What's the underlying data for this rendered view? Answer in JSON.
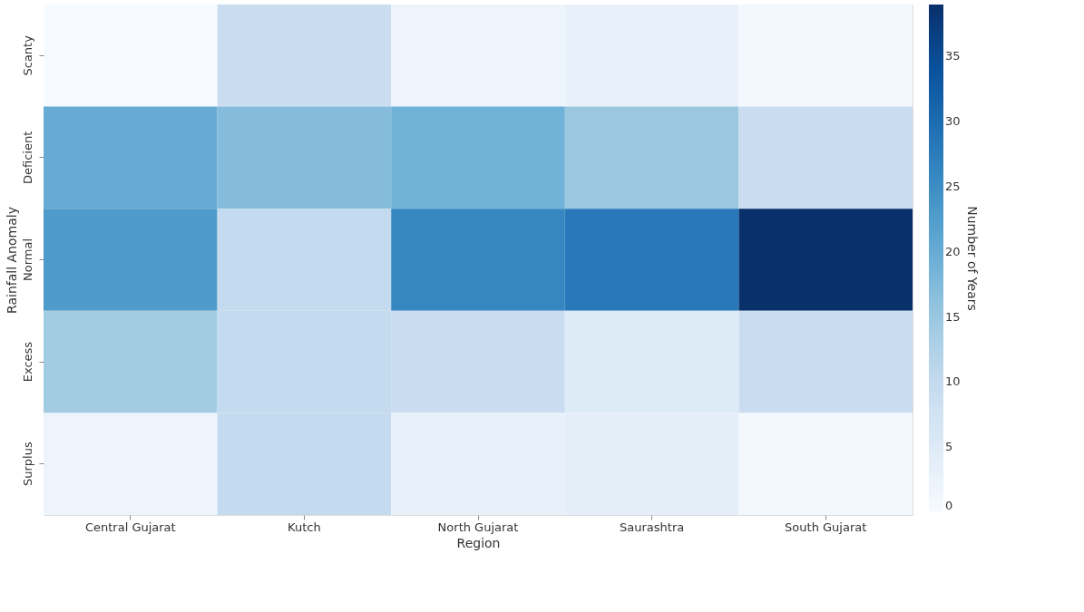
{
  "chart_data": {
    "type": "heatmap",
    "xlabel": "Region",
    "ylabel": "Rainfall Anomaly",
    "clabel": "Number of Years",
    "categories": [
      "Central Gujarat",
      "Kutch",
      "North Gujarat",
      "Saurashtra",
      "South Gujarat"
    ],
    "y_categories": [
      "Scanty",
      "Deficient",
      "Normal",
      "Excess",
      "Surplus"
    ],
    "cells": [
      [
        0,
        9,
        2,
        3,
        1
      ],
      [
        20,
        17,
        19,
        15,
        9
      ],
      [
        23,
        10,
        26,
        28,
        39
      ],
      [
        14,
        10,
        9,
        5,
        9
      ],
      [
        2,
        10,
        3,
        4,
        1
      ]
    ],
    "clim": [
      0,
      39
    ],
    "cticks": [
      0,
      5,
      10,
      15,
      20,
      25,
      30,
      35
    ],
    "grid": false
  }
}
